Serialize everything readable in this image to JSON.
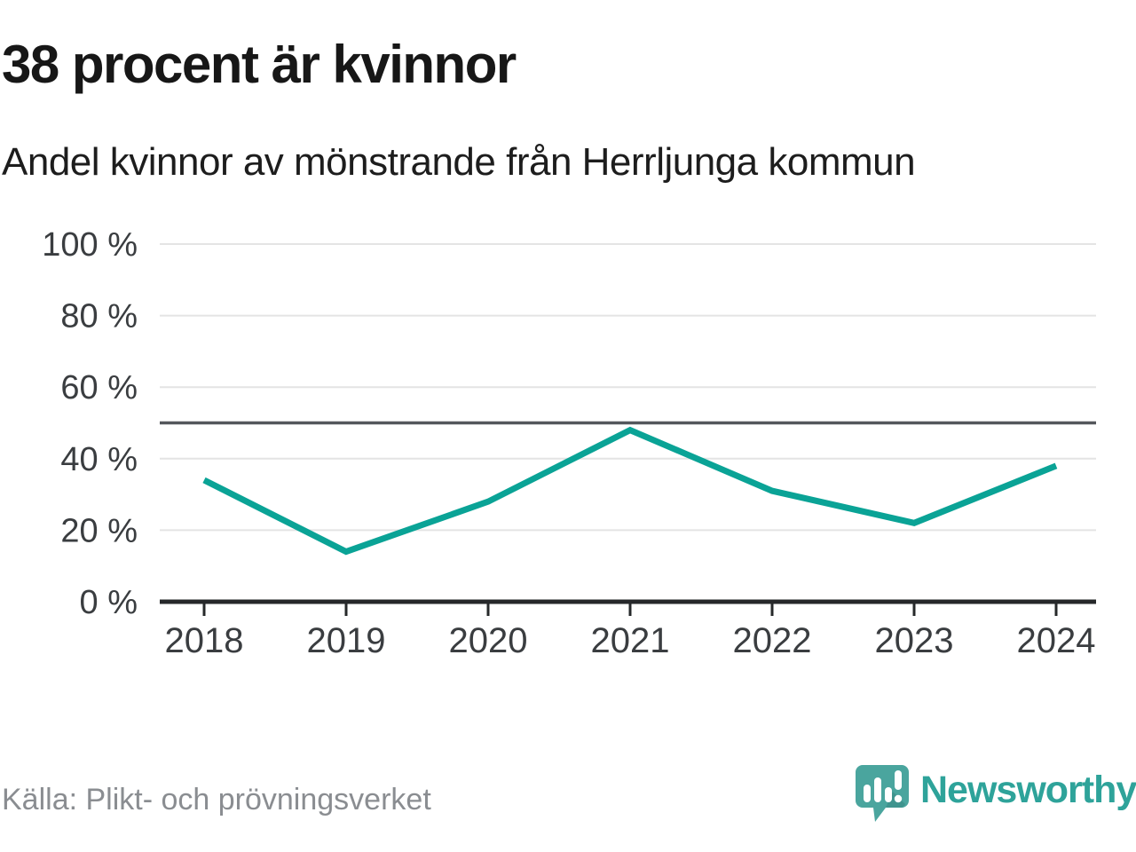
{
  "header": {
    "title": "38 procent är kvinnor",
    "subtitle": "Andel kvinnor av mönstrande från Herrljunga kommun"
  },
  "footer": {
    "source": "Källa: Plikt- och prövningsverket",
    "brand": "Newsworthy"
  },
  "chart_data": {
    "type": "line",
    "title": "38 procent är kvinnor",
    "subtitle": "Andel kvinnor av mönstrande från Herrljunga kommun",
    "series_name": "Andel kvinnor av mönstrande",
    "categories": [
      "2018",
      "2019",
      "2020",
      "2021",
      "2022",
      "2023",
      "2024"
    ],
    "values": [
      34,
      14,
      28,
      48,
      31,
      22,
      38
    ],
    "unit": "%",
    "ylim": [
      0,
      100
    ],
    "yticks": [
      0,
      20,
      40,
      60,
      80,
      100
    ],
    "ytick_labels": [
      "0 %",
      "20 %",
      "40 %",
      "60 %",
      "80 %",
      "100 %"
    ],
    "reference_line": 50,
    "grid": true,
    "legend": "none",
    "colors": {
      "line": "#0aa396",
      "reference": "#54575c",
      "grid": "#e4e4e4",
      "axis": "#26282a",
      "tick_label": "#3a3d40"
    }
  }
}
